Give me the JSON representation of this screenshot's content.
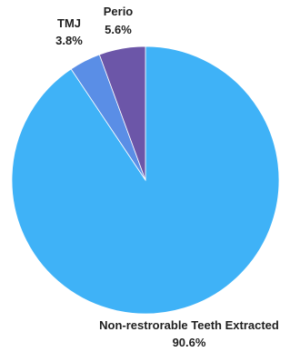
{
  "chart_data": {
    "type": "pie",
    "title": "",
    "start": "12 o'clock, clockwise",
    "slices": [
      {
        "label": "Non-restrorable Teeth Extracted",
        "value_text": "90.6%",
        "value": 90.6,
        "color": "#3fb2f7"
      },
      {
        "label": "TMJ",
        "value_text": "3.8%",
        "value": 3.8,
        "color": "#5a8ee6"
      },
      {
        "label": "Perio",
        "value_text": "5.6%",
        "value": 5.6,
        "color": "#6c56a8"
      }
    ]
  }
}
